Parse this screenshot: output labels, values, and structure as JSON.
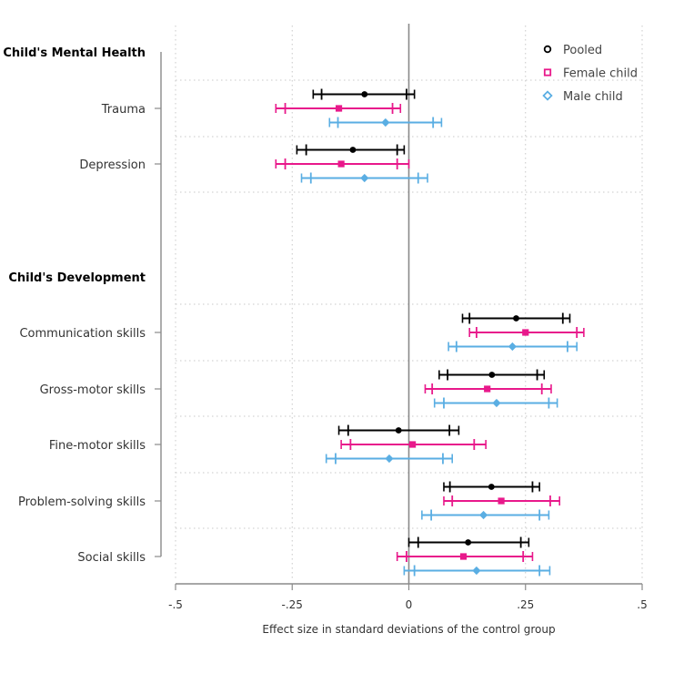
{
  "chart_data": {
    "type": "scatter",
    "xlabel": "Effect size in standard deviations of the control group",
    "xlim": [
      -0.5,
      0.5
    ],
    "xticks": [
      {
        "value": -0.5,
        "label": "-.5"
      },
      {
        "value": -0.25,
        "label": "-.25"
      },
      {
        "value": 0,
        "label": "0"
      },
      {
        "value": 0.25,
        "label": ".25"
      },
      {
        "value": 0.5,
        "label": ".5"
      }
    ],
    "legend": {
      "placement": "top-right",
      "entries": [
        {
          "name": "Pooled",
          "color": "#000000",
          "marker": "circle"
        },
        {
          "name": "Female child",
          "color": "#e8198b",
          "marker": "square"
        },
        {
          "name": "Male child",
          "color": "#5aaee3",
          "marker": "diamond"
        }
      ]
    },
    "groups": [
      {
        "heading": "Child's Mental Health",
        "outcomes": [
          {
            "label": "Trauma",
            "pooled": {
              "est": -0.095,
              "ci90": [
                -0.187,
                -0.005
              ],
              "ci95": [
                -0.205,
                0.012
              ]
            },
            "female": {
              "est": -0.15,
              "ci90": [
                -0.265,
                -0.035
              ],
              "ci95": [
                -0.285,
                -0.018
              ]
            },
            "male": {
              "est": -0.05,
              "ci90": [
                -0.152,
                0.052
              ],
              "ci95": [
                -0.17,
                0.07
              ]
            }
          },
          {
            "label": "Depression",
            "pooled": {
              "est": -0.12,
              "ci90": [
                -0.22,
                -0.025
              ],
              "ci95": [
                -0.24,
                -0.01
              ]
            },
            "female": {
              "est": -0.145,
              "ci90": [
                -0.265,
                -0.025
              ],
              "ci95": [
                -0.285,
                0.0
              ]
            },
            "male": {
              "est": -0.095,
              "ci90": [
                -0.21,
                0.02
              ],
              "ci95": [
                -0.23,
                0.04
              ]
            }
          }
        ]
      },
      {
        "heading": "Child's Development",
        "outcomes": [
          {
            "label": "Communication skills",
            "pooled": {
              "est": 0.23,
              "ci90": [
                0.13,
                0.33
              ],
              "ci95": [
                0.115,
                0.345
              ]
            },
            "female": {
              "est": 0.25,
              "ci90": [
                0.145,
                0.36
              ],
              "ci95": [
                0.13,
                0.375
              ]
            },
            "male": {
              "est": 0.222,
              "ci90": [
                0.102,
                0.34
              ],
              "ci95": [
                0.085,
                0.36
              ]
            }
          },
          {
            "label": "Gross-motor skills",
            "pooled": {
              "est": 0.178,
              "ci90": [
                0.083,
                0.275
              ],
              "ci95": [
                0.065,
                0.29
              ]
            },
            "female": {
              "est": 0.168,
              "ci90": [
                0.05,
                0.285
              ],
              "ci95": [
                0.035,
                0.305
              ]
            },
            "male": {
              "est": 0.188,
              "ci90": [
                0.075,
                0.3
              ],
              "ci95": [
                0.055,
                0.318
              ]
            }
          },
          {
            "label": "Fine-motor skills",
            "pooled": {
              "est": -0.022,
              "ci90": [
                -0.13,
                0.087
              ],
              "ci95": [
                -0.15,
                0.107
              ]
            },
            "female": {
              "est": 0.008,
              "ci90": [
                -0.125,
                0.14
              ],
              "ci95": [
                -0.145,
                0.165
              ]
            },
            "male": {
              "est": -0.042,
              "ci90": [
                -0.157,
                0.073
              ],
              "ci95": [
                -0.177,
                0.093
              ]
            }
          },
          {
            "label": "Problem-solving skills",
            "pooled": {
              "est": 0.177,
              "ci90": [
                0.088,
                0.265
              ],
              "ci95": [
                0.075,
                0.28
              ]
            },
            "female": {
              "est": 0.198,
              "ci90": [
                0.093,
                0.303
              ],
              "ci95": [
                0.075,
                0.323
              ]
            },
            "male": {
              "est": 0.16,
              "ci90": [
                0.048,
                0.28
              ],
              "ci95": [
                0.028,
                0.3
              ]
            }
          },
          {
            "label": "Social skills",
            "pooled": {
              "est": 0.127,
              "ci90": [
                0.02,
                0.24
              ],
              "ci95": [
                0.0,
                0.257
              ]
            },
            "female": {
              "est": 0.117,
              "ci90": [
                -0.005,
                0.245
              ],
              "ci95": [
                -0.025,
                0.265
              ]
            },
            "male": {
              "est": 0.145,
              "ci90": [
                0.012,
                0.28
              ],
              "ci95": [
                -0.01,
                0.302
              ]
            }
          }
        ]
      }
    ],
    "grid": true,
    "reference_line": 0
  }
}
